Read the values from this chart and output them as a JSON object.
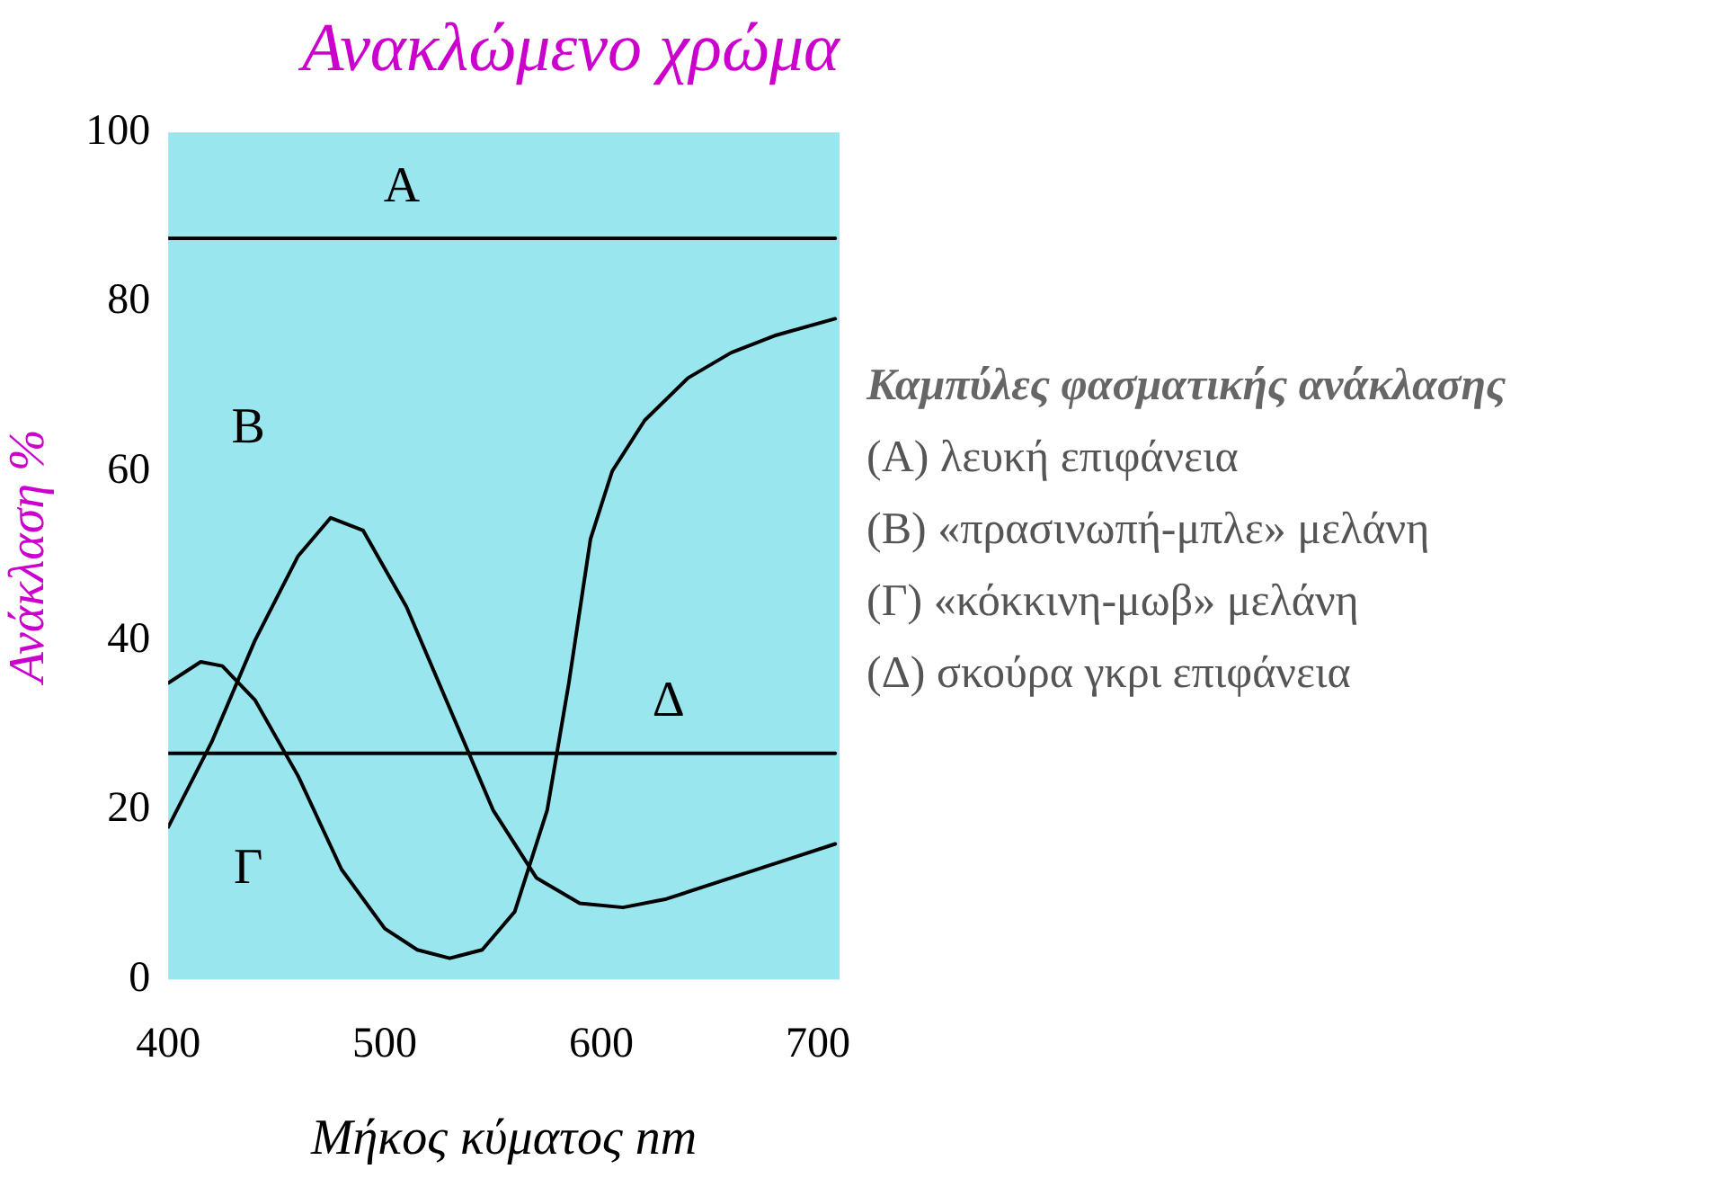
{
  "chart_data": {
    "type": "line",
    "title": "Ανακλώμενο χρώμα",
    "xlabel": "Μήκος κύματος nm",
    "ylabel": "Ανάκλαση %",
    "xlim": [
      400,
      710
    ],
    "xticks": [
      400,
      500,
      600,
      700
    ],
    "ylim": [
      0,
      100
    ],
    "yticks": [
      0,
      20,
      40,
      60,
      80,
      100
    ],
    "grid": false,
    "legend": false,
    "marker": "none",
    "line_style": "solid",
    "series": [
      {
        "name": "Α",
        "color": "#000000",
        "x": [
          400,
          708
        ],
        "values": [
          87.5,
          87.5
        ]
      },
      {
        "name": "Β",
        "color": "#000000",
        "x": [
          400,
          420,
          440,
          460,
          475,
          490,
          510,
          530,
          550,
          570,
          590,
          610,
          630,
          660,
          690,
          708
        ],
        "values": [
          18,
          28,
          40,
          50,
          54.5,
          53,
          44,
          32,
          20,
          12,
          9,
          8.5,
          9.5,
          12,
          14.5,
          16
        ]
      },
      {
        "name": "Γ",
        "color": "#000000",
        "x": [
          400,
          415,
          425,
          440,
          460,
          480,
          500,
          515,
          530,
          545,
          560,
          575,
          585,
          595,
          605,
          620,
          640,
          660,
          680,
          708
        ],
        "values": [
          35,
          37.5,
          37,
          33,
          24,
          13,
          6,
          3.5,
          2.5,
          3.5,
          8,
          20,
          35,
          52,
          60,
          66,
          71,
          74,
          76,
          78
        ]
      },
      {
        "name": "Δ",
        "color": "#000000",
        "x": [
          400,
          708
        ],
        "values": [
          26.7,
          26.7
        ]
      }
    ],
    "annotations": [
      "Καμπύλες φασματικής ανάκλασης",
      "(Α) λευκή επιφάνεια",
      "(Β) «πρασινωπή-μπλε» μελάνη",
      "(Γ) «κόκκινη-μωβ» μελάνη",
      "(Δ) σκούρα γκρι επιφάνεια"
    ]
  }
}
